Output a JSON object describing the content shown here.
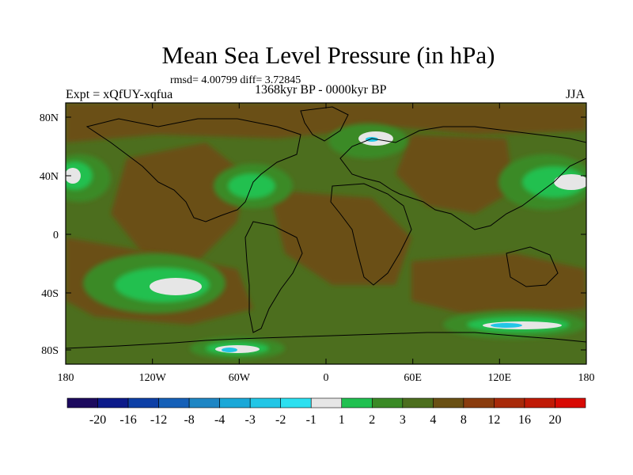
{
  "title": "Mean Sea Level Pressure (in hPa)",
  "stats": "rmsd= 4.00799 diff= 3.72845",
  "experiment": "Expt = xQfUY-xqfua",
  "period": "1368kyr BP - 0000kyr BP",
  "season": "JJA",
  "lat_ticks": [
    "80N",
    "40N",
    "0",
    "40S",
    "80S"
  ],
  "lon_ticks": [
    "180",
    "120W",
    "60W",
    "0",
    "60E",
    "120E",
    "180"
  ],
  "colorbar": {
    "labels": [
      "-20",
      "-16",
      "-12",
      "-8",
      "-4",
      "-3",
      "-2",
      "-1",
      "1",
      "2",
      "3",
      "4",
      "8",
      "12",
      "16",
      "20"
    ],
    "colors": [
      "#1c0a5e",
      "#0c1a8a",
      "#0d3fa6",
      "#1560b8",
      "#1e86c4",
      "#1aa8d8",
      "#22c6e6",
      "#2ce0f0",
      "#e6e6e6",
      "#20c050",
      "#3a8a26",
      "#4c6e1e",
      "#6a5014",
      "#8a3c0e",
      "#a82a0a",
      "#c01a06",
      "#d80a04"
    ]
  },
  "map_colors": {
    "background": "#5a5a18",
    "positive_large": "#7a4a14",
    "positive_mid": "#6a5014",
    "neutral": "#4c6e1e",
    "green_mid": "#3a8a26",
    "green_light": "#20c050",
    "white": "#e6e6e6",
    "cyan": "#22c6e6",
    "red": "#a82a0a"
  }
}
